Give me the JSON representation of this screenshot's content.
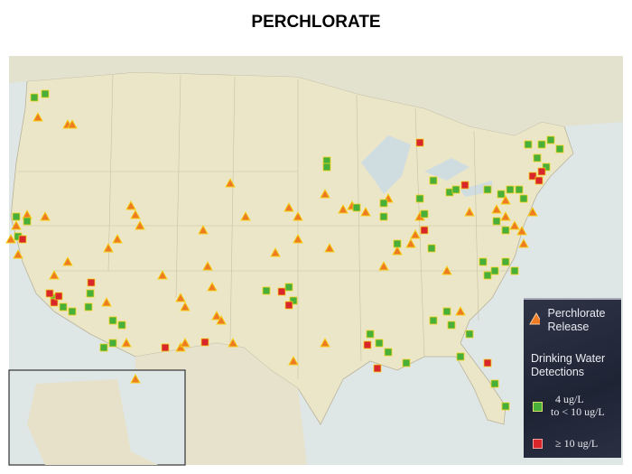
{
  "title": "PERCHLORATE",
  "legend": {
    "release_label": "Perchlorate Release",
    "detections_heading": "Drinking Water Detections",
    "low_label_line1": "4 ug/L",
    "low_label_line2": "to < 10 ug/L",
    "high_label": "≥ 10 ug/L"
  },
  "colors": {
    "release_triangle": "#ee7a22",
    "low_square": "#48b03a",
    "high_square": "#d8262a",
    "marker_outline": "#f4d21a",
    "land": "#ece6c9",
    "water": "#dde6e6",
    "legend_bg": "#222a3a"
  },
  "icons": [
    "triangle-icon",
    "green-square-icon",
    "red-square-icon"
  ]
}
